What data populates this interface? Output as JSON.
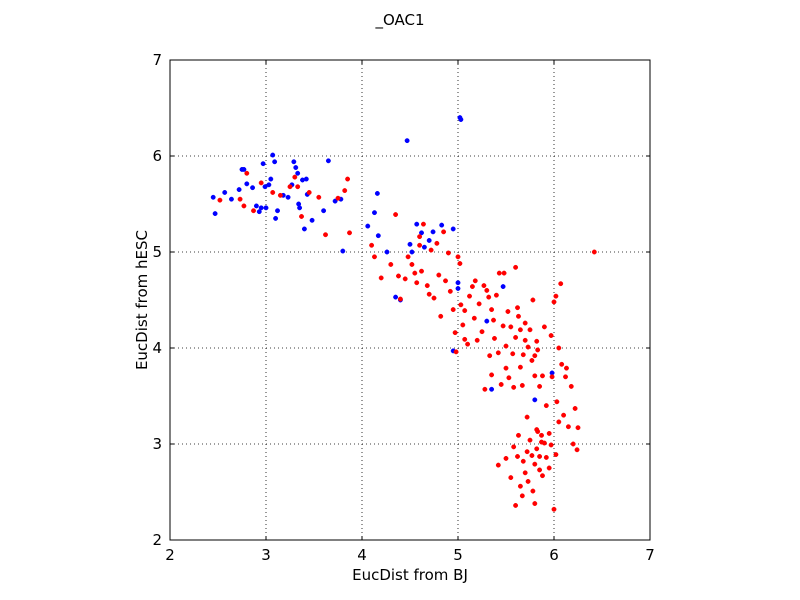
{
  "chart_data": {
    "type": "scatter",
    "title": "_OAC1",
    "xlabel": "EucDist from BJ",
    "ylabel": "EucDist from hESC",
    "xlim": [
      2,
      7
    ],
    "ylim": [
      2,
      7
    ],
    "xticks": [
      "2",
      "3",
      "4",
      "5",
      "6",
      "7"
    ],
    "yticks": [
      "2",
      "3",
      "4",
      "5",
      "6",
      "7"
    ],
    "grid": true,
    "legend": "none",
    "series": [
      {
        "color": "#0000ff",
        "points": [
          [
            2.45,
            5.57
          ],
          [
            2.47,
            5.4
          ],
          [
            2.57,
            5.62
          ],
          [
            2.64,
            5.55
          ],
          [
            2.72,
            5.65
          ],
          [
            2.75,
            5.86
          ],
          [
            2.77,
            5.86
          ],
          [
            2.8,
            5.71
          ],
          [
            2.86,
            5.67
          ],
          [
            2.9,
            5.48
          ],
          [
            2.93,
            5.42
          ],
          [
            2.95,
            5.46
          ],
          [
            2.97,
            5.92
          ],
          [
            2.99,
            5.68
          ],
          [
            3.0,
            5.46
          ],
          [
            3.03,
            5.7
          ],
          [
            3.05,
            5.76
          ],
          [
            3.07,
            6.01
          ],
          [
            3.09,
            5.94
          ],
          [
            3.1,
            5.35
          ],
          [
            3.12,
            5.43
          ],
          [
            3.18,
            5.59
          ],
          [
            3.23,
            5.57
          ],
          [
            3.27,
            5.7
          ],
          [
            3.29,
            5.94
          ],
          [
            3.31,
            5.88
          ],
          [
            3.33,
            5.82
          ],
          [
            3.34,
            5.5
          ],
          [
            3.35,
            5.46
          ],
          [
            3.38,
            5.75
          ],
          [
            3.4,
            5.24
          ],
          [
            3.42,
            5.76
          ],
          [
            3.43,
            5.6
          ],
          [
            3.48,
            5.33
          ],
          [
            3.6,
            5.43
          ],
          [
            3.65,
            5.95
          ],
          [
            3.72,
            5.53
          ],
          [
            3.78,
            5.55
          ],
          [
            3.8,
            5.01
          ],
          [
            4.06,
            5.27
          ],
          [
            4.13,
            5.41
          ],
          [
            4.16,
            5.61
          ],
          [
            4.17,
            5.17
          ],
          [
            4.26,
            5.0
          ],
          [
            4.35,
            4.53
          ],
          [
            4.4,
            4.5
          ],
          [
            4.47,
            6.16
          ],
          [
            4.5,
            5.08
          ],
          [
            4.52,
            5.0
          ],
          [
            4.57,
            5.29
          ],
          [
            4.62,
            5.2
          ],
          [
            4.65,
            5.05
          ],
          [
            4.7,
            5.12
          ],
          [
            4.74,
            5.21
          ],
          [
            4.83,
            5.28
          ],
          [
            4.95,
            5.24
          ],
          [
            4.95,
            3.97
          ],
          [
            5.0,
            4.68
          ],
          [
            5.0,
            4.62
          ],
          [
            5.02,
            6.4
          ],
          [
            5.03,
            6.38
          ],
          [
            5.3,
            4.28
          ],
          [
            5.35,
            3.57
          ],
          [
            5.47,
            4.64
          ],
          [
            5.8,
            3.46
          ],
          [
            5.98,
            3.74
          ]
        ]
      },
      {
        "color": "#ff0000",
        "points": [
          [
            2.52,
            5.54
          ],
          [
            2.73,
            5.55
          ],
          [
            2.77,
            5.48
          ],
          [
            2.8,
            5.82
          ],
          [
            2.87,
            5.43
          ],
          [
            2.95,
            5.72
          ],
          [
            3.07,
            5.62
          ],
          [
            3.15,
            5.59
          ],
          [
            3.25,
            5.68
          ],
          [
            3.3,
            5.78
          ],
          [
            3.33,
            5.68
          ],
          [
            3.37,
            5.37
          ],
          [
            3.45,
            5.62
          ],
          [
            3.55,
            5.57
          ],
          [
            3.62,
            5.18
          ],
          [
            3.75,
            5.56
          ],
          [
            3.82,
            5.64
          ],
          [
            3.85,
            5.76
          ],
          [
            3.87,
            5.2
          ],
          [
            4.1,
            5.07
          ],
          [
            4.13,
            4.95
          ],
          [
            4.2,
            4.73
          ],
          [
            4.3,
            4.87
          ],
          [
            4.35,
            5.39
          ],
          [
            4.38,
            4.75
          ],
          [
            4.4,
            4.51
          ],
          [
            4.45,
            4.72
          ],
          [
            4.48,
            4.95
          ],
          [
            4.52,
            4.87
          ],
          [
            4.55,
            4.78
          ],
          [
            4.57,
            4.68
          ],
          [
            4.6,
            5.16
          ],
          [
            4.6,
            5.07
          ],
          [
            4.62,
            4.8
          ],
          [
            4.64,
            5.29
          ],
          [
            4.68,
            4.65
          ],
          [
            4.7,
            4.56
          ],
          [
            4.72,
            5.02
          ],
          [
            4.75,
            4.52
          ],
          [
            4.78,
            5.09
          ],
          [
            4.8,
            4.76
          ],
          [
            4.82,
            4.33
          ],
          [
            4.85,
            5.21
          ],
          [
            4.87,
            4.7
          ],
          [
            4.9,
            4.99
          ],
          [
            4.92,
            4.59
          ],
          [
            4.95,
            4.4
          ],
          [
            4.97,
            4.16
          ],
          [
            4.98,
            3.96
          ],
          [
            5.0,
            4.95
          ],
          [
            5.02,
            4.88
          ],
          [
            5.03,
            4.45
          ],
          [
            5.05,
            4.24
          ],
          [
            5.07,
            4.09
          ],
          [
            5.07,
            4.39
          ],
          [
            5.1,
            4.04
          ],
          [
            5.12,
            4.54
          ],
          [
            5.15,
            4.64
          ],
          [
            5.17,
            4.31
          ],
          [
            5.18,
            4.7
          ],
          [
            5.2,
            4.08
          ],
          [
            5.22,
            4.46
          ],
          [
            5.25,
            4.17
          ],
          [
            5.27,
            4.65
          ],
          [
            5.28,
            3.57
          ],
          [
            5.3,
            4.6
          ],
          [
            5.32,
            4.53
          ],
          [
            5.33,
            3.92
          ],
          [
            5.35,
            4.4
          ],
          [
            5.35,
            3.72
          ],
          [
            5.37,
            4.29
          ],
          [
            5.38,
            4.1
          ],
          [
            5.4,
            4.55
          ],
          [
            5.42,
            3.95
          ],
          [
            5.43,
            4.78
          ],
          [
            5.45,
            3.62
          ],
          [
            5.47,
            4.23
          ],
          [
            5.48,
            4.78
          ],
          [
            5.5,
            3.79
          ],
          [
            5.5,
            4.02
          ],
          [
            5.52,
            4.38
          ],
          [
            5.53,
            3.69
          ],
          [
            5.55,
            4.22
          ],
          [
            5.57,
            3.94
          ],
          [
            5.58,
            3.59
          ],
          [
            5.6,
            4.84
          ],
          [
            5.6,
            4.11
          ],
          [
            5.62,
            4.42
          ],
          [
            5.63,
            4.33
          ],
          [
            5.65,
            3.8
          ],
          [
            5.65,
            4.19
          ],
          [
            5.67,
            3.61
          ],
          [
            5.68,
            3.93
          ],
          [
            5.7,
            4.08
          ],
          [
            5.7,
            4.26
          ],
          [
            5.72,
            3.28
          ],
          [
            5.73,
            4.01
          ],
          [
            5.75,
            4.19
          ],
          [
            5.77,
            3.87
          ],
          [
            5.78,
            4.5
          ],
          [
            5.8,
            3.71
          ],
          [
            5.8,
            3.92
          ],
          [
            5.82,
            4.07
          ],
          [
            5.82,
            3.15
          ],
          [
            5.83,
            3.98
          ],
          [
            5.85,
            3.6
          ],
          [
            5.87,
            3.02
          ],
          [
            5.88,
            3.71
          ],
          [
            5.9,
            4.22
          ],
          [
            5.92,
            3.4
          ],
          [
            5.95,
            3.11
          ],
          [
            5.97,
            4.13
          ],
          [
            5.98,
            3.7
          ],
          [
            6.0,
            4.48
          ],
          [
            6.0,
            2.32
          ],
          [
            6.02,
            4.54
          ],
          [
            6.03,
            3.44
          ],
          [
            6.05,
            4.0
          ],
          [
            6.05,
            3.23
          ],
          [
            6.07,
            4.67
          ],
          [
            6.08,
            3.83
          ],
          [
            6.1,
            3.3
          ],
          [
            6.12,
            3.7
          ],
          [
            6.13,
            3.79
          ],
          [
            6.15,
            3.18
          ],
          [
            6.18,
            3.6
          ],
          [
            6.2,
            3.0
          ],
          [
            6.22,
            3.37
          ],
          [
            6.24,
            2.94
          ],
          [
            6.25,
            3.17
          ],
          [
            6.42,
            5.0
          ],
          [
            5.42,
            2.78
          ],
          [
            5.5,
            2.85
          ],
          [
            5.55,
            2.65
          ],
          [
            5.58,
            2.97
          ],
          [
            5.6,
            2.36
          ],
          [
            5.62,
            2.87
          ],
          [
            5.63,
            3.09
          ],
          [
            5.65,
            2.56
          ],
          [
            5.67,
            2.46
          ],
          [
            5.68,
            2.82
          ],
          [
            5.7,
            2.7
          ],
          [
            5.72,
            2.92
          ],
          [
            5.73,
            2.61
          ],
          [
            5.75,
            3.04
          ],
          [
            5.77,
            2.88
          ],
          [
            5.78,
            2.51
          ],
          [
            5.8,
            2.79
          ],
          [
            5.8,
            2.38
          ],
          [
            5.82,
            2.95
          ],
          [
            5.83,
            3.13
          ],
          [
            5.85,
            2.73
          ],
          [
            5.85,
            2.87
          ],
          [
            5.87,
            3.09
          ],
          [
            5.88,
            2.67
          ],
          [
            5.9,
            3.01
          ],
          [
            5.92,
            2.86
          ],
          [
            5.95,
            2.75
          ],
          [
            5.97,
            2.99
          ],
          [
            6.02,
            2.89
          ]
        ]
      }
    ]
  }
}
